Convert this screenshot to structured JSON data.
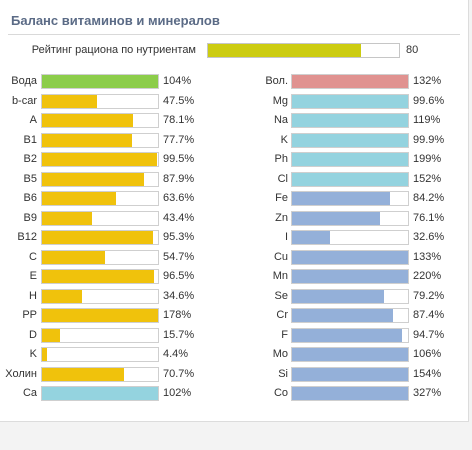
{
  "title": "Баланс витаминов и минералов",
  "rating": {
    "label": "Рейтинг рациона по нутриентам",
    "value": 80,
    "display": "80",
    "color": "#cccc11"
  },
  "colors": {
    "green": "#8ccd4a",
    "yellow": "#f0c20c",
    "cyan": "#94d3df",
    "red": "#e09290",
    "blue": "#94b0d9"
  },
  "vitamins": [
    {
      "label": "Вода",
      "value": 104,
      "display": "104%",
      "color": "green"
    },
    {
      "label": "b-car",
      "value": 47.5,
      "display": "47.5%",
      "color": "yellow"
    },
    {
      "label": "A",
      "value": 78.1,
      "display": "78.1%",
      "color": "yellow"
    },
    {
      "label": "B1",
      "value": 77.7,
      "display": "77.7%",
      "color": "yellow"
    },
    {
      "label": "B2",
      "value": 99.5,
      "display": "99.5%",
      "color": "yellow"
    },
    {
      "label": "B5",
      "value": 87.9,
      "display": "87.9%",
      "color": "yellow"
    },
    {
      "label": "B6",
      "value": 63.6,
      "display": "63.6%",
      "color": "yellow"
    },
    {
      "label": "B9",
      "value": 43.4,
      "display": "43.4%",
      "color": "yellow"
    },
    {
      "label": "B12",
      "value": 95.3,
      "display": "95.3%",
      "color": "yellow"
    },
    {
      "label": "C",
      "value": 54.7,
      "display": "54.7%",
      "color": "yellow"
    },
    {
      "label": "E",
      "value": 96.5,
      "display": "96.5%",
      "color": "yellow"
    },
    {
      "label": "H",
      "value": 34.6,
      "display": "34.6%",
      "color": "yellow"
    },
    {
      "label": "PP",
      "value": 178,
      "display": "178%",
      "color": "yellow"
    },
    {
      "label": "D",
      "value": 15.7,
      "display": "15.7%",
      "color": "yellow"
    },
    {
      "label": "K",
      "value": 4.4,
      "display": "4.4%",
      "color": "yellow"
    },
    {
      "label": "Холин",
      "value": 70.7,
      "display": "70.7%",
      "color": "yellow"
    },
    {
      "label": "Ca",
      "value": 102,
      "display": "102%",
      "color": "cyan"
    }
  ],
  "minerals": [
    {
      "label": "Вол.",
      "value": 132,
      "display": "132%",
      "color": "red"
    },
    {
      "label": "Mg",
      "value": 99.6,
      "display": "99.6%",
      "color": "cyan"
    },
    {
      "label": "Na",
      "value": 119,
      "display": "119%",
      "color": "cyan"
    },
    {
      "label": "K",
      "value": 99.9,
      "display": "99.9%",
      "color": "cyan"
    },
    {
      "label": "Ph",
      "value": 199,
      "display": "199%",
      "color": "cyan"
    },
    {
      "label": "Cl",
      "value": 152,
      "display": "152%",
      "color": "cyan"
    },
    {
      "label": "Fe",
      "value": 84.2,
      "display": "84.2%",
      "color": "blue"
    },
    {
      "label": "Zn",
      "value": 76.1,
      "display": "76.1%",
      "color": "blue"
    },
    {
      "label": "I",
      "value": 32.6,
      "display": "32.6%",
      "color": "blue"
    },
    {
      "label": "Cu",
      "value": 133,
      "display": "133%",
      "color": "blue"
    },
    {
      "label": "Mn",
      "value": 220,
      "display": "220%",
      "color": "blue"
    },
    {
      "label": "Se",
      "value": 79.2,
      "display": "79.2%",
      "color": "blue"
    },
    {
      "label": "Cr",
      "value": 87.4,
      "display": "87.4%",
      "color": "blue"
    },
    {
      "label": "F",
      "value": 94.7,
      "display": "94.7%",
      "color": "blue"
    },
    {
      "label": "Mo",
      "value": 106,
      "display": "106%",
      "color": "blue"
    },
    {
      "label": "Si",
      "value": 154,
      "display": "154%",
      "color": "blue"
    },
    {
      "label": "Co",
      "value": 327,
      "display": "327%",
      "color": "blue"
    }
  ]
}
